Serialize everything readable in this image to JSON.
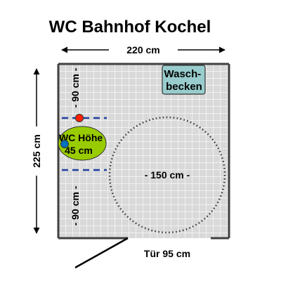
{
  "title": "WC Bahnhof Kochel",
  "dimensions": {
    "width": "220 cm",
    "depth": "225 cm",
    "upper_clearance": "- 90 cm -",
    "lower_clearance": "- 90 cm -",
    "turning_circle": "- 150 cm -",
    "door": "Tür 95 cm"
  },
  "toilet": {
    "line1": "WC Höhe",
    "line2": "45 cm"
  },
  "sink": {
    "line1": "Wasch-",
    "line2": "becken"
  },
  "colors": {
    "wall": "#404040",
    "floor_tile": "#d9d9d9",
    "grid_line": "#ffffff",
    "toilet": "#99cc00",
    "sink": "#99cccc",
    "dash_line": "#1f3f9f",
    "red_marker": "#ff2000",
    "blue_marker": "#0070c0"
  },
  "icons": {
    "arrow": "arrow-icon",
    "marker": "dot-marker"
  }
}
